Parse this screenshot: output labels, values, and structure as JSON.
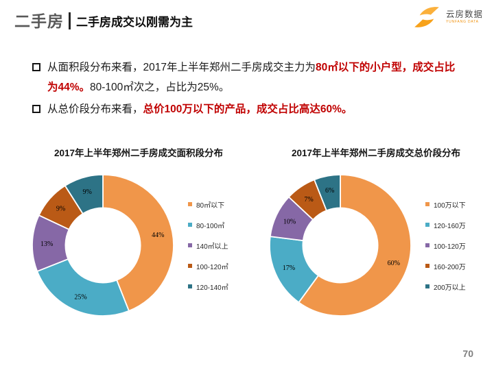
{
  "header": {
    "section_title": "二手房",
    "slide_title": "二手房成交以刚需为主"
  },
  "logo": {
    "name": "云房数据",
    "subtext": "YUNFANG DATA",
    "brand_color": "#F7A21B"
  },
  "bullets": [
    {
      "segments": [
        {
          "text": "从面积段分布来看，2017年上半年郑州二手房成交主力为",
          "emphasis": false
        },
        {
          "text": "80㎡以下的小户型，成交占比为44%。",
          "emphasis": true
        },
        {
          "text": "80-100㎡次之，占比为25%。",
          "emphasis": false
        }
      ]
    },
    {
      "segments": [
        {
          "text": "从总价段分布来看，",
          "emphasis": false
        },
        {
          "text": "总价100万以下的产品，成交占比高达60%。",
          "emphasis": true
        }
      ]
    }
  ],
  "colors": {
    "emphasis_red": "#C00000",
    "body_text": "#1A1A1A",
    "section_title_gray": "#595959",
    "page_number_gray": "#7F7F7F"
  },
  "chart_data": [
    {
      "type": "pie",
      "subtype": "donut",
      "title": "2017年上半年郑州二手房成交面积段分布",
      "categories": [
        "80㎡以下",
        "80-100㎡",
        "140㎡以上",
        "100-120㎡",
        "120-140㎡"
      ],
      "values": [
        44,
        25,
        13,
        9,
        9
      ],
      "value_labels": [
        "44%",
        "25%",
        "13%",
        "9%",
        "9%"
      ],
      "colors": [
        "#F0964A",
        "#4BACC6",
        "#8668A6",
        "#BA5A16",
        "#2D7386"
      ],
      "start_angle": "top",
      "direction": "clockwise",
      "legend_position": "right",
      "inner_radius_ratio": 0.53
    },
    {
      "type": "pie",
      "subtype": "donut",
      "title": "2017年上半年郑州二手房成交总价段分布",
      "categories": [
        "100万以下",
        "120-160万",
        "100-120万",
        "160-200万",
        "200万以上"
      ],
      "values": [
        60,
        17,
        10,
        7,
        6
      ],
      "value_labels": [
        "60%",
        "17%",
        "10%",
        "7%",
        "6%"
      ],
      "colors": [
        "#F0964A",
        "#4BACC6",
        "#8668A6",
        "#BA5A16",
        "#2D7386"
      ],
      "start_angle": "top",
      "direction": "clockwise",
      "legend_position": "right",
      "inner_radius_ratio": 0.53
    }
  ],
  "footer": {
    "page_number": "70"
  }
}
